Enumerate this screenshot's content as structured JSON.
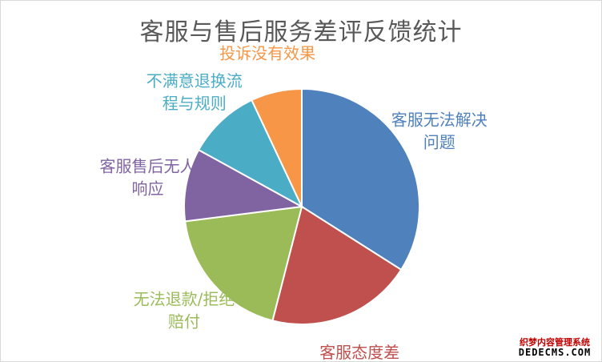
{
  "chart_data": {
    "type": "pie",
    "title": "客服与售后服务差评反馈统计",
    "slices": [
      {
        "label": "客服无法解决问题",
        "label_lines": [
          "客服无法解决",
          "问题"
        ],
        "value": 34,
        "color": "#4F81BD"
      },
      {
        "label": "客服态度差",
        "label_lines": [
          "客服态度差"
        ],
        "value": 20,
        "color": "#C0504D"
      },
      {
        "label": "无法退款/拒绝赔付",
        "label_lines": [
          "无法退款/拒绝",
          "赔付"
        ],
        "value": 19,
        "color": "#9BBB59"
      },
      {
        "label": "客服售后无人响应",
        "label_lines": [
          "客服售后无人",
          "响应"
        ],
        "value": 10,
        "color": "#8064A2"
      },
      {
        "label": "不满意退换流程与规则",
        "label_lines": [
          "不满意退换流",
          "程与规则"
        ],
        "value": 10,
        "color": "#4BACC6"
      },
      {
        "label": "投诉没有效果",
        "label_lines": [
          "投诉没有效果"
        ],
        "value": 7,
        "color": "#F79646"
      }
    ],
    "legend": "none",
    "data_labels": "category-outside"
  },
  "watermark": {
    "line1": "织梦内容管理系统",
    "line2": "DEDECMS.COM"
  }
}
